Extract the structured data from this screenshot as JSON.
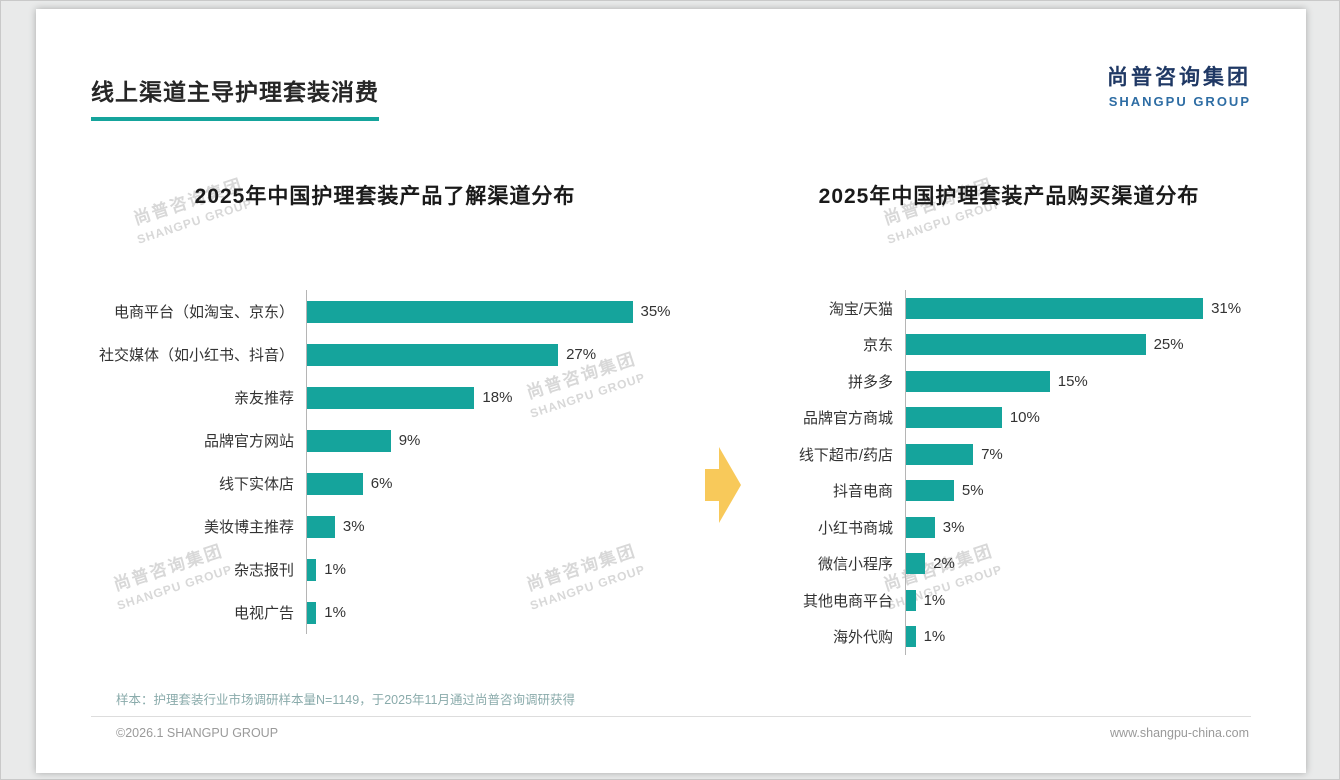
{
  "page": {
    "title": "线上渠道主导护理套装消费",
    "logo": {
      "cn": "尚普咨询集团",
      "en": "SHANGPU GROUP"
    },
    "watermark": {
      "cn": "尚普咨询集团",
      "en": "SHANGPU GROUP"
    },
    "footer": {
      "note": "样本：护理套装行业市场调研样本量N=1149，于2025年11月通过尚普咨询调研获得",
      "copyright": "©2026.1 SHANGPU GROUP",
      "website": "www.shangpu-china.com"
    }
  },
  "colors": {
    "bar": "#15A49C",
    "accent": "#15A49C",
    "arrow": "#F8C95A",
    "logo_cn": "#1F3864",
    "logo_en": "#2E6DA4"
  },
  "chart_data": [
    {
      "type": "bar",
      "orientation": "horizontal",
      "title": "2025年中国护理套装产品了解渠道分布",
      "categories": [
        "电商平台（如淘宝、京东）",
        "社交媒体（如小红书、抖音）",
        "亲友推荐",
        "品牌官方网站",
        "线下实体店",
        "美妆博主推荐",
        "杂志报刊",
        "电视广告"
      ],
      "values": [
        35,
        27,
        18,
        9,
        6,
        3,
        1,
        1
      ],
      "unit": "%",
      "xlim": [
        0,
        40
      ],
      "grid": false,
      "legend": false,
      "data_labels": true
    },
    {
      "type": "bar",
      "orientation": "horizontal",
      "title": "2025年中国护理套装产品购买渠道分布",
      "categories": [
        "淘宝/天猫",
        "京东",
        "拼多多",
        "品牌官方商城",
        "线下超市/药店",
        "抖音电商",
        "小红书商城",
        "微信小程序",
        "其他电商平台",
        "海外代购"
      ],
      "values": [
        31,
        25,
        15,
        10,
        7,
        5,
        3,
        2,
        1,
        1
      ],
      "unit": "%",
      "xlim": [
        0,
        36
      ],
      "grid": false,
      "legend": false,
      "data_labels": true
    }
  ]
}
